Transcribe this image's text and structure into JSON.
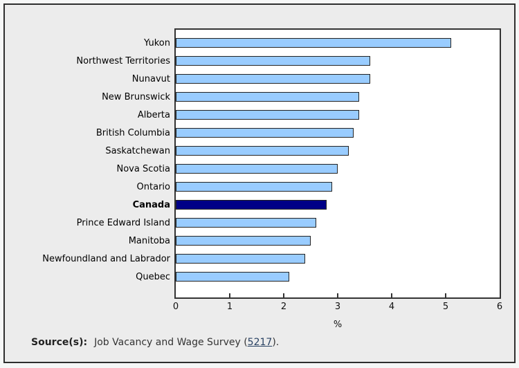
{
  "chart_data": {
    "type": "bar",
    "orientation": "horizontal",
    "title": "",
    "categories": [
      "Yukon",
      "Northwest Territories",
      "Nunavut",
      "New Brunswick",
      "Alberta",
      "British Columbia",
      "Saskatchewan",
      "Nova Scotia",
      "Ontario",
      "Canada",
      "Prince Edward Island",
      "Manitoba",
      "Newfoundland and Labrador",
      "Quebec"
    ],
    "values": [
      5.1,
      3.6,
      3.6,
      3.4,
      3.4,
      3.3,
      3.2,
      3.0,
      2.9,
      2.8,
      2.6,
      2.5,
      2.4,
      2.1
    ],
    "highlight_category": "Canada",
    "xlabel": "%",
    "xlim": [
      0,
      6
    ],
    "xticks": [
      0,
      1,
      2,
      3,
      4,
      5,
      6
    ],
    "grid": false,
    "legend": false,
    "colors": {
      "bar": "#99ccff",
      "highlight_bar": "#000087",
      "bar_border": "#222222",
      "plot_border": "#333333",
      "plot_background": "#ffffff"
    }
  },
  "frame": {
    "background": "#ececec",
    "border_color": "#2e2e2e",
    "page_background": "#f6f7f7"
  },
  "source": {
    "label": "Source(s):",
    "text_before_link": "Job Vacancy and Wage Survey (",
    "link_text": "5217",
    "text_after_link": ").",
    "link_color": "#284162"
  }
}
